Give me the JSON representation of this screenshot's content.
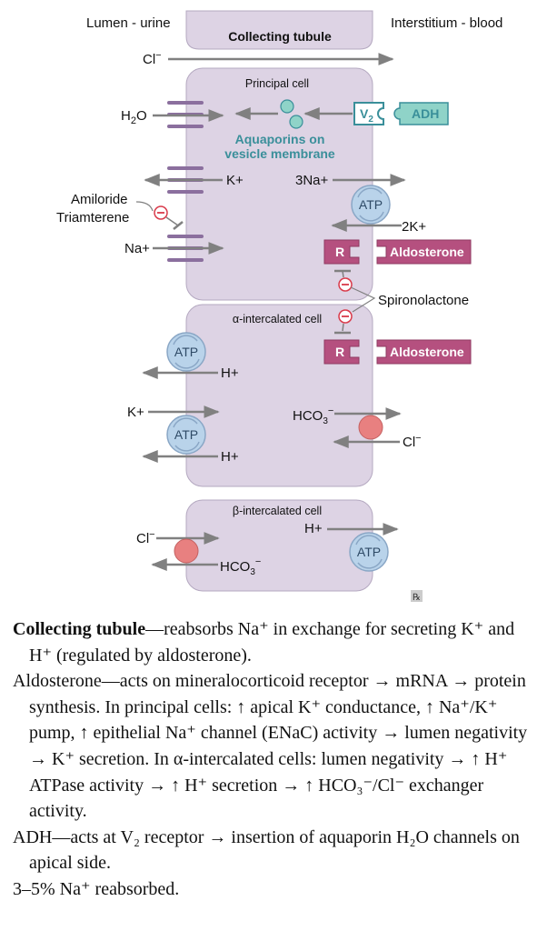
{
  "diagram": {
    "header_left": "Lumen - urine",
    "header_right": "Interstitium - blood",
    "tubule_title": "Collecting tubule",
    "cl_top": "Cl",
    "principal_cell": "Principal cell",
    "h2o": "H",
    "h2o_sub": "2",
    "h2o_tail": "O",
    "v2": "V",
    "v2_sub": "2",
    "adh": "ADH",
    "aquaporins_line1": "Aquaporins on",
    "aquaporins_line2": "vesicle membrane",
    "k_plus_apical": "K+",
    "na3": "3Na+",
    "atp": "ATP",
    "k2": "2K+",
    "amiloride": "Amiloride",
    "triamterene": "Triamterene",
    "na_plus": "Na+",
    "receptor": "R",
    "aldosterone": "Aldosterone",
    "spironolactone": "Spironolactone",
    "alpha_cell": "α-intercalated cell",
    "h_plus": "H+",
    "k_plus_alpha": "K+",
    "hco3": "HCO",
    "hco3_sub": "3",
    "minus": "−",
    "cl_alpha": "Cl",
    "beta_cell": "β-intercalated cell",
    "cl_beta": "Cl",
    "rx": "℞"
  },
  "caption": {
    "p1_bold": "Collecting tubule",
    "p1_text": "—reabsorbs Na⁺ in exchange for secreting K⁺ and H⁺ (regulated by aldosterone).",
    "p2_text": "Aldosterone—acts on mineralocorticoid receptor → mRNA → protein synthesis. In principal cells: ↑ apical K⁺ conductance, ↑ Na⁺/K⁺ pump, ↑ epithelial Na⁺ channel (ENaC) activity → lumen negativity → K⁺ secretion. In α-intercalated cells: lumen negativity → ↑ H⁺ ATPase activity → ↑ H⁺ secretion → ↑ HCO₃⁻/Cl⁻ exchanger activity.",
    "p3_text": "ADH—acts at V₂ receptor → insertion of aquaporin H₂O channels on apical side.",
    "p4_text": "3–5% Na⁺ reabsorbed."
  },
  "colors": {
    "cell_fill": "#ddd3e4",
    "cell_stroke": "#b4a8c0",
    "channel": "#8b6f9e",
    "arrow": "#808080",
    "teal": "#3a8f9a",
    "teal_light": "#8fd3c8",
    "magenta": "#b5507f",
    "inhibit_red": "#d93a4a",
    "atp_fill": "#b9d3ea",
    "exchanger": "#e88080"
  }
}
